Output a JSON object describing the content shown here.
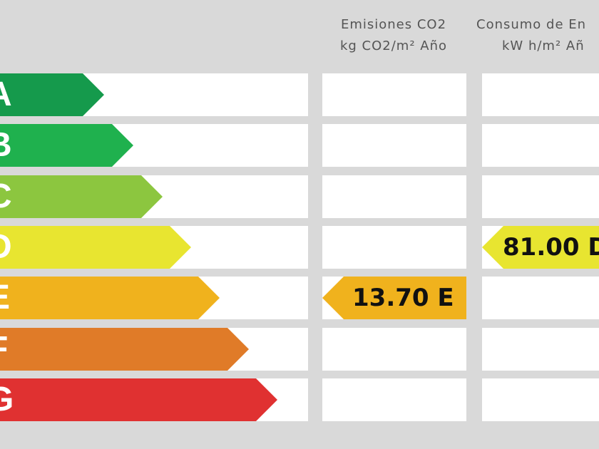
{
  "headers": {
    "emissions_line1": "Emisiones CO2",
    "emissions_line2": "kg CO2/m² Año",
    "consumption_line1": "Consumo de En",
    "consumption_line2": "kW h/m² Añ"
  },
  "ratings": [
    {
      "letter": "A",
      "color": "#159a4c"
    },
    {
      "letter": "B",
      "color": "#1fb14e"
    },
    {
      "letter": "C",
      "color": "#8cc63f"
    },
    {
      "letter": "D",
      "color": "#e8e530"
    },
    {
      "letter": "E",
      "color": "#f0b21d"
    },
    {
      "letter": "F",
      "color": "#e07b28"
    },
    {
      "letter": "G",
      "color": "#e03131"
    }
  ],
  "emissions": {
    "value": "13.70 E",
    "rating": "E",
    "color": "#f0b21d"
  },
  "consumption": {
    "value": "81.00 D",
    "rating": "D",
    "color": "#e8e530"
  }
}
